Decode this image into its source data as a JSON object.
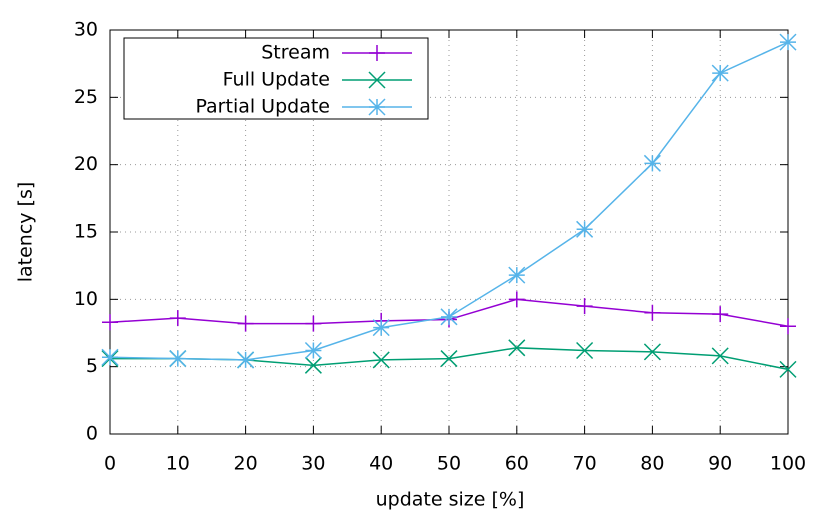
{
  "chart_data": {
    "type": "line",
    "xlabel": "update size [%]",
    "ylabel": "latency [s]",
    "x": [
      0,
      10,
      20,
      30,
      40,
      50,
      60,
      70,
      80,
      90,
      100
    ],
    "series": [
      {
        "name": "Stream",
        "color": "#9400d3",
        "marker": "plus",
        "values": [
          8.3,
          8.6,
          8.2,
          8.2,
          8.4,
          8.5,
          10.0,
          9.5,
          9.0,
          8.9,
          8.0
        ]
      },
      {
        "name": "Full Update",
        "color": "#009e73",
        "marker": "cross",
        "values": [
          5.6,
          5.6,
          5.5,
          5.1,
          5.5,
          5.6,
          6.4,
          6.2,
          6.1,
          5.8,
          4.8
        ]
      },
      {
        "name": "Partial Update",
        "color": "#56b4e9",
        "marker": "star",
        "values": [
          5.7,
          5.6,
          5.5,
          6.2,
          7.9,
          8.7,
          11.8,
          15.2,
          20.1,
          26.8,
          29.1
        ]
      }
    ],
    "xlim": [
      0,
      100
    ],
    "xticks": [
      0,
      10,
      20,
      30,
      40,
      50,
      60,
      70,
      80,
      90,
      100
    ],
    "ylim": [
      0,
      30
    ],
    "yticks": [
      0,
      5,
      10,
      15,
      20,
      25,
      30
    ],
    "grid": true,
    "legend": "top left"
  }
}
